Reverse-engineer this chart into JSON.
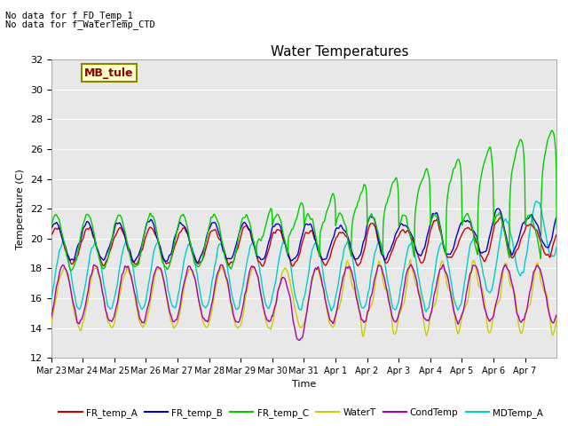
{
  "title": "Water Temperatures",
  "xlabel": "Time",
  "ylabel": "Temperature (C)",
  "ylim": [
    12,
    32
  ],
  "yticks": [
    12,
    14,
    16,
    18,
    20,
    22,
    24,
    26,
    28,
    30,
    32
  ],
  "text_annotations": [
    "No data for f_FD_Temp_1",
    "No data for f_WaterTemp_CTD"
  ],
  "legend_box_label": "MB_tule",
  "xtick_labels": [
    "Mar 23",
    "Mar 24",
    "Mar 25",
    "Mar 26",
    "Mar 27",
    "Mar 28",
    "Mar 29",
    "Mar 30",
    "Mar 31",
    "Apr 1",
    "Apr 2",
    "Apr 3",
    "Apr 4",
    "Apr 5",
    "Apr 6",
    "Apr 7"
  ],
  "series": {
    "FR_temp_A": {
      "color": "#cc0000",
      "lw": 1.0
    },
    "FR_temp_B": {
      "color": "#0000cc",
      "lw": 1.0
    },
    "FR_temp_C": {
      "color": "#00cc00",
      "lw": 1.0
    },
    "WaterT": {
      "color": "#cccc00",
      "lw": 1.0
    },
    "CondTemp": {
      "color": "#aa00aa",
      "lw": 1.0
    },
    "MDTemp_A": {
      "color": "#00cccc",
      "lw": 1.0
    }
  },
  "background_color": "#e8e8e8",
  "grid_color": "#ffffff",
  "fig_bg": "#ffffff"
}
